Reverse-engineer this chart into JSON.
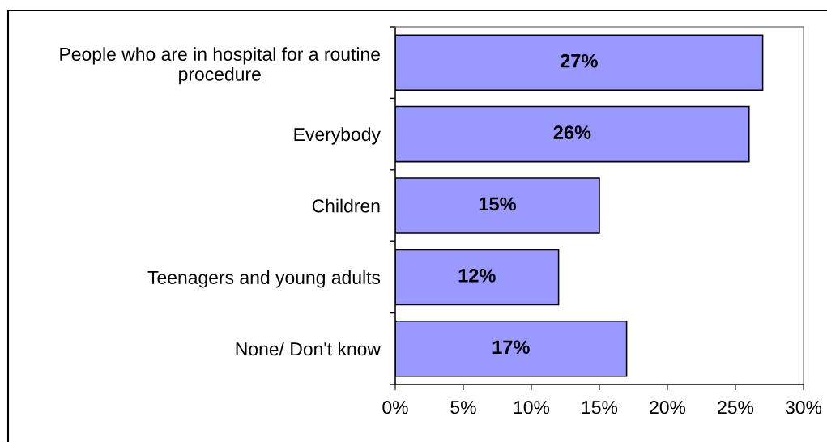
{
  "chart_data": {
    "type": "bar",
    "orientation": "horizontal",
    "categories": [
      "People who are in hospital for a routine procedure",
      "Everybody",
      "Children",
      "Teenagers and young adults",
      "None/ Don't know"
    ],
    "values": [
      27,
      26,
      15,
      12,
      17
    ],
    "color": "#9999ff",
    "value_labels": [
      "27%",
      "26%",
      "15%",
      "12%",
      "17%"
    ],
    "xlim": [
      0,
      30
    ],
    "xticks": [
      {
        "value": 0,
        "label": "0%"
      },
      {
        "value": 5,
        "label": "5%"
      },
      {
        "value": 10,
        "label": "10%"
      },
      {
        "value": 15,
        "label": "15%"
      },
      {
        "value": 20,
        "label": "20%"
      },
      {
        "value": 25,
        "label": "25%"
      },
      {
        "value": 30,
        "label": "30%"
      }
    ]
  }
}
